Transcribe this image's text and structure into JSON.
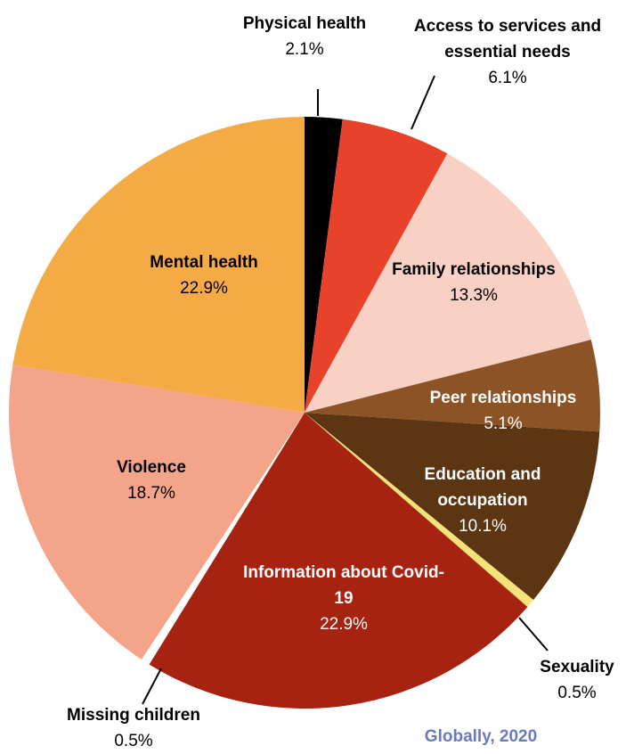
{
  "chart_data": {
    "type": "pie",
    "categories": [
      "Physical health",
      "Access to services and essential needs",
      "Family relationships",
      "Peer relationships",
      "Education and occupation",
      "Sexuality",
      "Information about Covid-19",
      "Missing children",
      "Violence",
      "Mental health"
    ],
    "values": [
      2.1,
      6.1,
      13.3,
      5.1,
      10.1,
      0.5,
      22.9,
      0.5,
      18.7,
      22.9
    ],
    "value_labels": [
      "2.1%",
      "6.1%",
      "13.3%",
      "5.1%",
      "10.1%",
      "0.5%",
      "22.9%",
      "0.5%",
      "18.7%",
      "22.9%"
    ],
    "colors": [
      "#000000",
      "#e8432a",
      "#f9d0c4",
      "#8c5426",
      "#5c3512",
      "#f5e37a",
      "#a52310",
      "#ffffff",
      "#f4a488",
      "#f5ab45"
    ],
    "annotation": "Globally, 2020"
  }
}
